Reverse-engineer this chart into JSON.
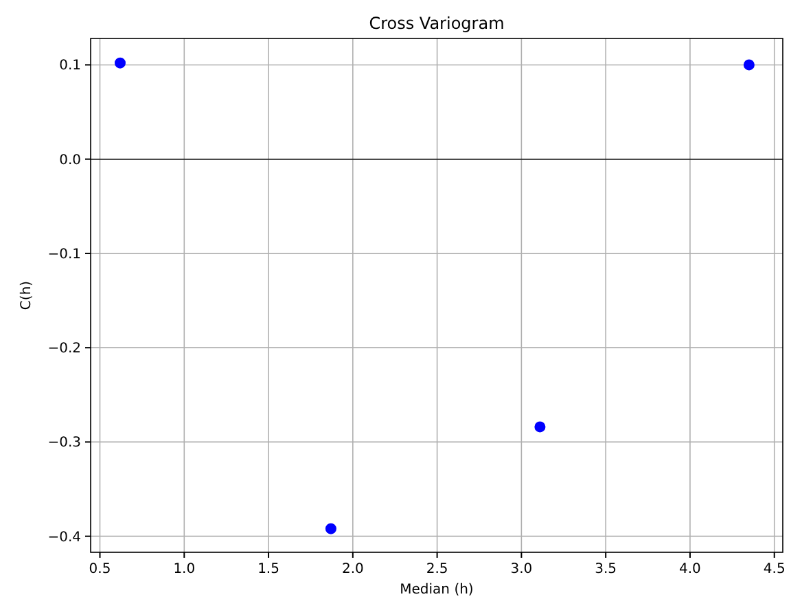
{
  "chart_data": {
    "type": "scatter",
    "title": "Cross Variogram",
    "xlabel": "Median (h)",
    "ylabel": "C(h)",
    "x": [
      0.62,
      1.87,
      3.11,
      4.35
    ],
    "series": [
      {
        "color": "#0000ff",
        "values": [
          0.102,
          -0.392,
          -0.284,
          0.1
        ]
      }
    ],
    "xlim": [
      0.445,
      4.55
    ],
    "ylim": [
      -0.417,
      0.128
    ],
    "xticks": [
      0.5,
      {
        "value": 1,
        "label": "1.0"
      },
      1.5,
      {
        "value": 2,
        "label": "2.0"
      },
      2.5,
      {
        "value": 3,
        "label": "3.0"
      },
      3.5,
      {
        "value": 4,
        "label": "4.0"
      },
      4.5
    ],
    "yticks": [
      {
        "value": -0.4,
        "label": "−0.4"
      },
      {
        "value": -0.3,
        "label": "−0.3"
      },
      {
        "value": -0.2,
        "label": "−0.2"
      },
      {
        "value": -0.1,
        "label": "−0.1"
      },
      {
        "value": 0,
        "label": "0.0"
      },
      0.1
    ],
    "ref_lines": [
      {
        "axis": "y",
        "value": 0,
        "color": "#000000"
      }
    ],
    "grid": true,
    "marker": "circle"
  }
}
